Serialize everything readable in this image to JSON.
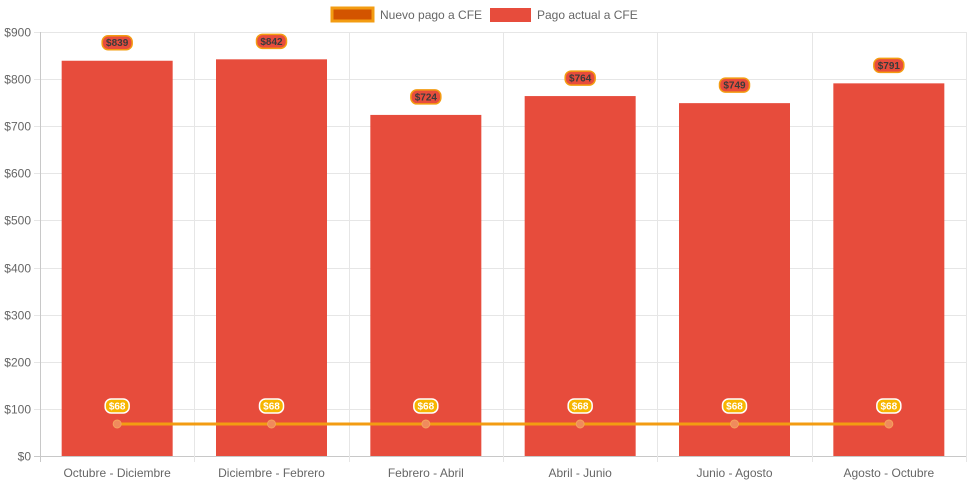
{
  "chart_data": {
    "type": "bar",
    "categories": [
      "Octubre - Diciembre",
      "Diciembre - Febrero",
      "Febrero - Abril",
      "Abril - Junio",
      "Junio - Agosto",
      "Agosto - Octubre"
    ],
    "series": [
      {
        "name": "Nuevo pago a CFE",
        "type": "line",
        "values": [
          68,
          68,
          68,
          68,
          68,
          68
        ],
        "labels": [
          "$68",
          "$68",
          "$68",
          "$68",
          "$68",
          "$68"
        ],
        "color": "#f39c12",
        "legend_fill": "#d35400"
      },
      {
        "name": "Pago actual a CFE",
        "type": "bar",
        "values": [
          839,
          842,
          724,
          764,
          749,
          791
        ],
        "labels": [
          "$839",
          "$842",
          "$724",
          "$764",
          "$749",
          "$791"
        ],
        "color": "#e74c3c"
      }
    ],
    "y_ticks": [
      "$0",
      "$100",
      "$200",
      "$300",
      "$400",
      "$500",
      "$600",
      "$700",
      "$800",
      "$900"
    ],
    "ylim": [
      0,
      900
    ],
    "grid": true,
    "legend_position": "top-center",
    "title": "",
    "xlabel": "",
    "ylabel": ""
  }
}
